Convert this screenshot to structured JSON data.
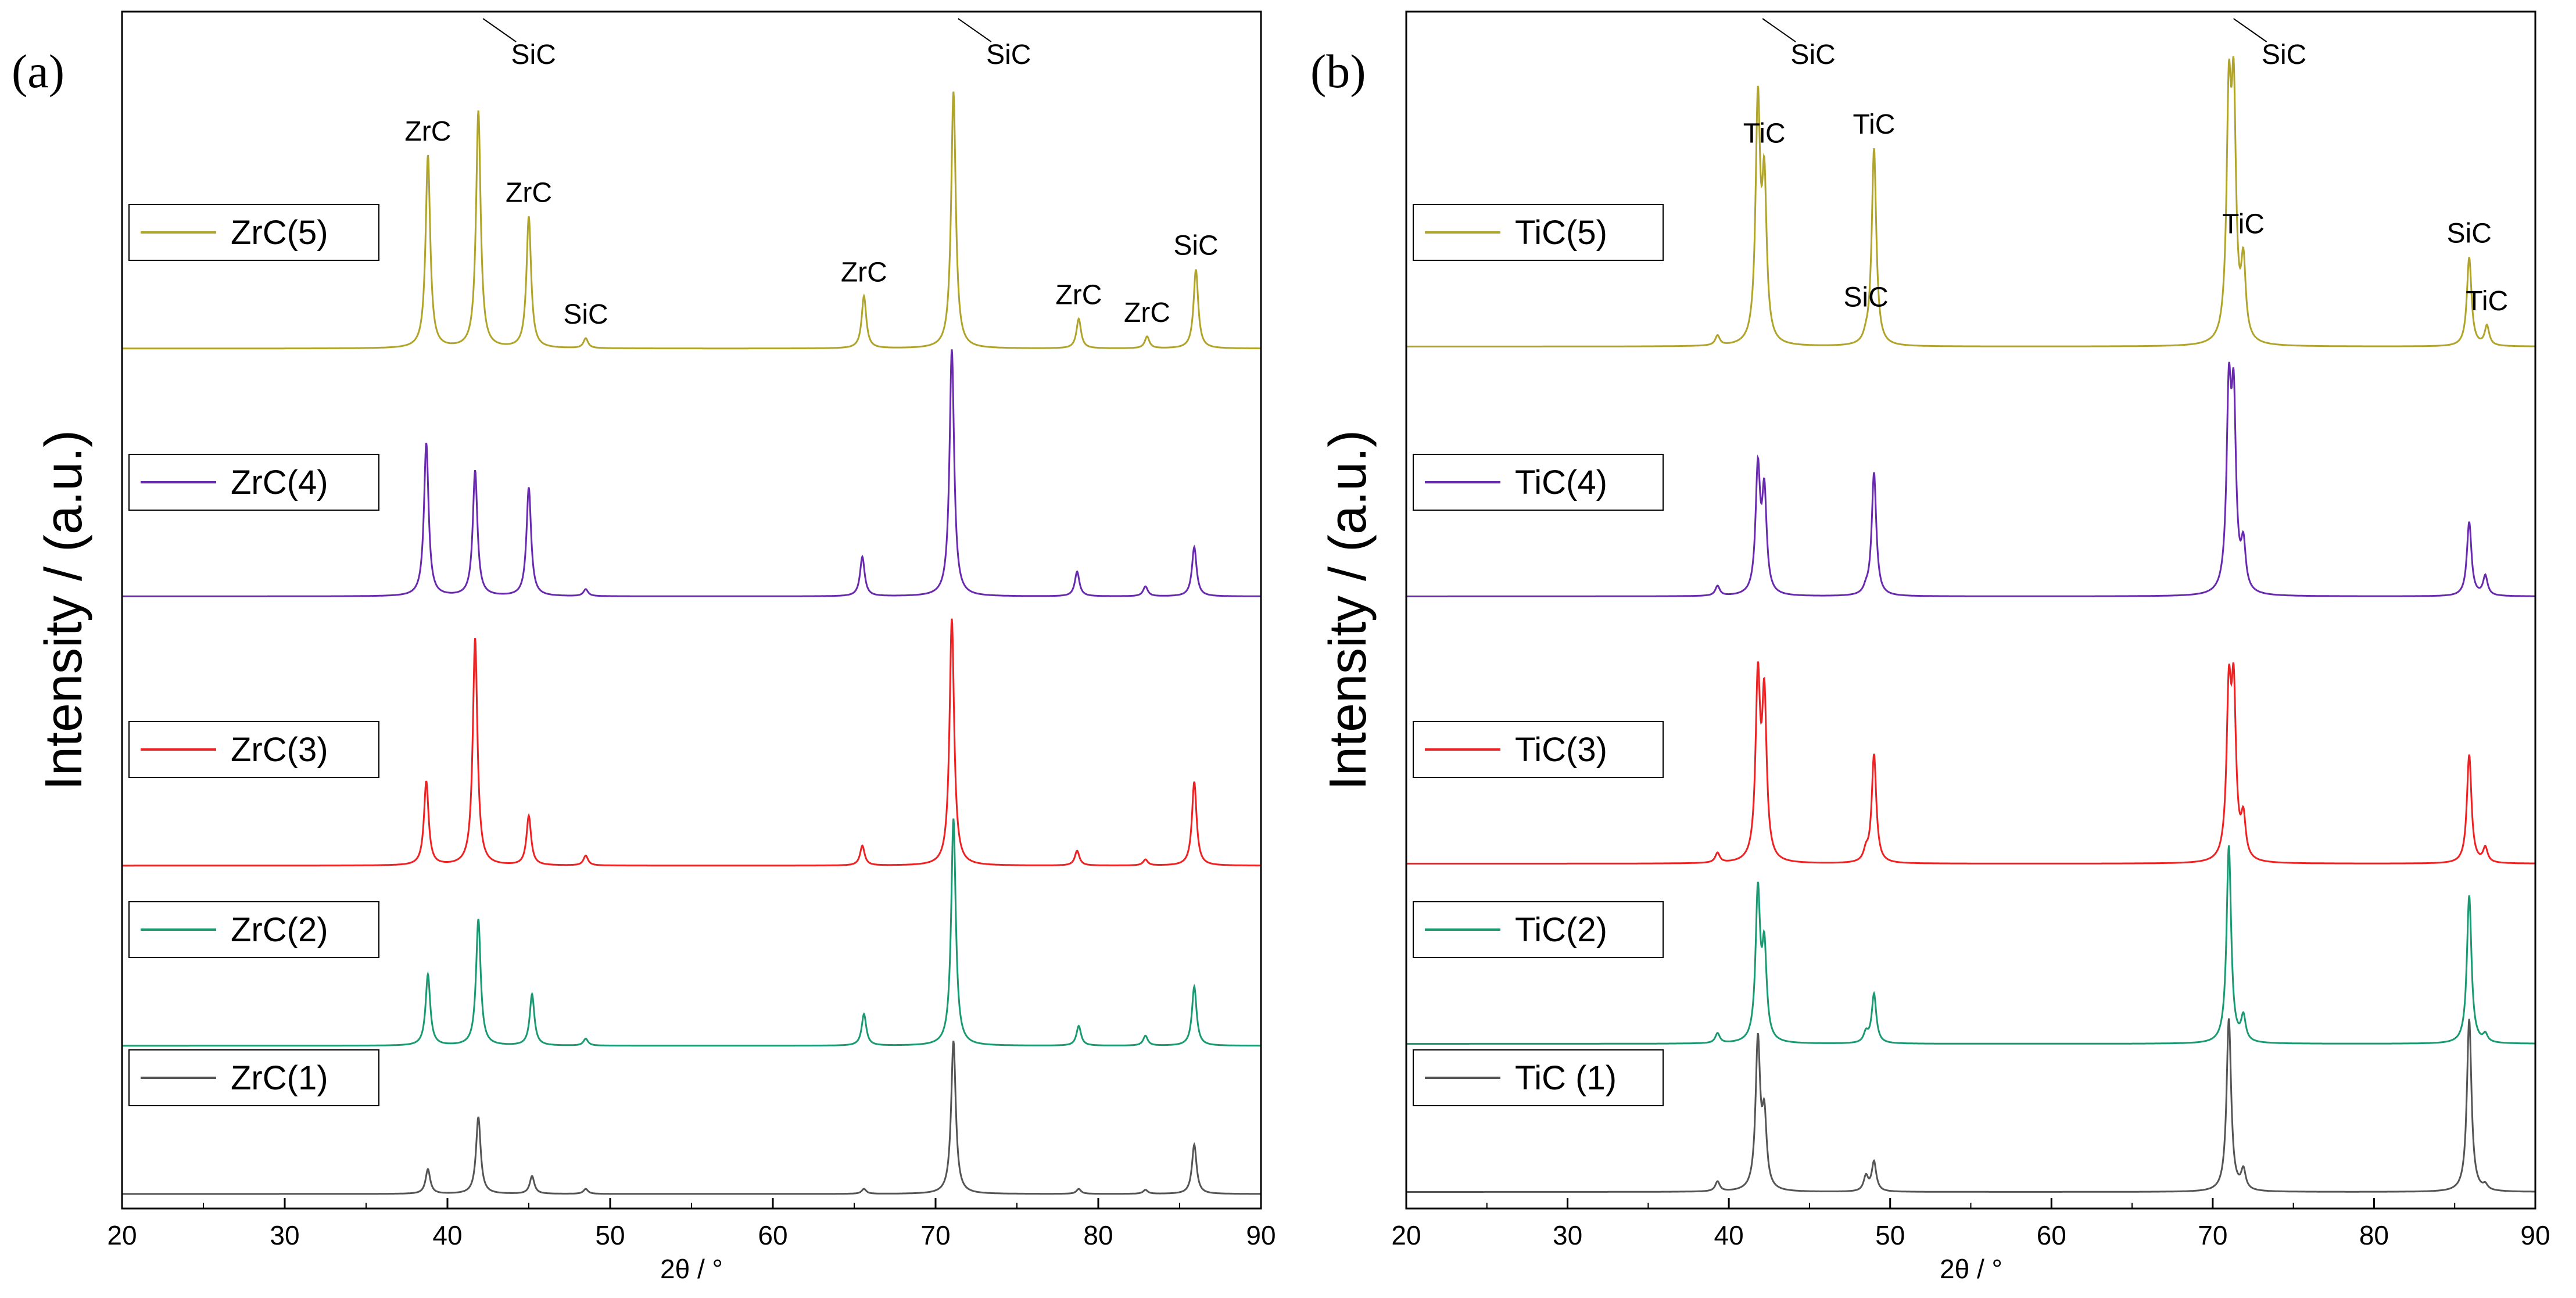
{
  "figure": {
    "xlabel": "2θ / °",
    "ylabel": "Intensity / (a.u.)"
  },
  "chart_data": [
    {
      "type": "line",
      "panel": "(a)",
      "xlabel": "2θ / °",
      "ylabel": "Intensity / (a.u.)",
      "xlim": [
        20,
        90
      ],
      "xticks": [
        20,
        30,
        40,
        50,
        60,
        70,
        80,
        90
      ],
      "yticks": [],
      "grid": false,
      "legend_position": "left (one entry beside each trace)",
      "series": [
        {
          "name": "ZrC(1)",
          "color": "#555555",
          "offset": 0,
          "base": 0.03,
          "peaks": [
            [
              38.8,
              0.25
            ],
            [
              41.9,
              0.78
            ],
            [
              45.2,
              0.18
            ],
            [
              48.5,
              0.05
            ],
            [
              65.6,
              0.05
            ],
            [
              71.1,
              1.55
            ],
            [
              78.8,
              0.05
            ],
            [
              82.9,
              0.04
            ],
            [
              85.9,
              0.5
            ]
          ]
        },
        {
          "name": "ZrC(2)",
          "color": "#1a9a72",
          "offset": 1,
          "base": 0.03,
          "peaks": [
            [
              38.8,
              0.72
            ],
            [
              41.9,
              1.28
            ],
            [
              45.2,
              0.52
            ],
            [
              48.5,
              0.07
            ],
            [
              65.6,
              0.32
            ],
            [
              71.1,
              2.3
            ],
            [
              78.8,
              0.2
            ],
            [
              82.9,
              0.1
            ],
            [
              85.9,
              0.6
            ]
          ]
        },
        {
          "name": "ZrC(3)",
          "color": "#ee2222",
          "offset": 2,
          "base": 0.03,
          "peaks": [
            [
              38.7,
              0.85
            ],
            [
              41.7,
              2.3
            ],
            [
              45.0,
              0.5
            ],
            [
              48.5,
              0.1
            ],
            [
              65.5,
              0.2
            ],
            [
              71.0,
              2.5
            ],
            [
              78.7,
              0.15
            ],
            [
              82.9,
              0.06
            ],
            [
              85.9,
              0.85
            ]
          ]
        },
        {
          "name": "ZrC(4)",
          "color": "#6a2ab0",
          "offset": 3,
          "base": 0.05,
          "peaks": [
            [
              38.7,
              1.55
            ],
            [
              41.7,
              1.27
            ],
            [
              45.0,
              1.1
            ],
            [
              48.5,
              0.07
            ],
            [
              65.5,
              0.4
            ],
            [
              71.0,
              2.5
            ],
            [
              78.7,
              0.25
            ],
            [
              82.9,
              0.1
            ],
            [
              85.9,
              0.5
            ]
          ]
        },
        {
          "name": "ZrC(5)",
          "color": "#b0a42a",
          "offset": 4,
          "base": 0.03,
          "peaks": [
            [
              38.8,
              1.95
            ],
            [
              41.9,
              2.4
            ],
            [
              45.0,
              1.33
            ],
            [
              48.5,
              0.1
            ],
            [
              65.6,
              0.53
            ],
            [
              71.1,
              2.6
            ],
            [
              78.8,
              0.3
            ],
            [
              83.0,
              0.12
            ],
            [
              86.0,
              0.8
            ]
          ]
        }
      ],
      "annotations": [
        {
          "text": "ZrC",
          "x": 38.8,
          "series": 4
        },
        {
          "text": "SiC",
          "x": 41.9,
          "series": 4,
          "arrow": true
        },
        {
          "text": "ZrC",
          "x": 45.0,
          "series": 4
        },
        {
          "text": "SiC",
          "x": 48.5,
          "series": 4
        },
        {
          "text": "ZrC",
          "x": 65.6,
          "series": 4
        },
        {
          "text": "SiC",
          "x": 71.1,
          "series": 4,
          "arrow": true
        },
        {
          "text": "ZrC",
          "x": 78.8,
          "series": 4
        },
        {
          "text": "ZrC",
          "x": 83.0,
          "series": 4
        },
        {
          "text": "SiC",
          "x": 86.0,
          "series": 4
        }
      ]
    },
    {
      "type": "line",
      "panel": "(b)",
      "xlabel": "2θ / °",
      "ylabel": "Intensity / (a.u.)",
      "xlim": [
        20,
        90
      ],
      "xticks": [
        20,
        30,
        40,
        50,
        60,
        70,
        80,
        90
      ],
      "yticks": [],
      "grid": false,
      "legend_position": "left (one entry beside each trace)",
      "series": [
        {
          "name": "TiC (1)",
          "color": "#555555",
          "offset": 0,
          "base": 0.05,
          "peaks": [
            [
              39.3,
              0.1
            ],
            [
              41.8,
              1.5
            ],
            [
              42.2,
              0.7
            ],
            [
              48.5,
              0.15
            ],
            [
              49.0,
              0.3
            ],
            [
              71.0,
              1.75
            ],
            [
              71.9,
              0.2
            ],
            [
              85.9,
              1.75
            ],
            [
              86.9,
              0.05
            ]
          ]
        },
        {
          "name": "TiC(2)",
          "color": "#1a9a72",
          "offset": 1,
          "base": 0.05,
          "peaks": [
            [
              39.3,
              0.1
            ],
            [
              41.8,
              1.5
            ],
            [
              42.2,
              0.9
            ],
            [
              48.5,
              0.1
            ],
            [
              49.0,
              0.5
            ],
            [
              71.0,
              2.0
            ],
            [
              71.9,
              0.25
            ],
            [
              85.9,
              1.5
            ],
            [
              86.9,
              0.08
            ]
          ]
        },
        {
          "name": "TiC(3)",
          "color": "#ee2222",
          "offset": 2,
          "base": 0.05,
          "peaks": [
            [
              39.3,
              0.1
            ],
            [
              41.8,
              1.8
            ],
            [
              42.2,
              1.6
            ],
            [
              48.5,
              0.1
            ],
            [
              49.0,
              1.1
            ],
            [
              71.0,
              1.6
            ],
            [
              71.3,
              1.6
            ],
            [
              71.9,
              0.4
            ],
            [
              85.9,
              1.1
            ],
            [
              86.9,
              0.15
            ]
          ]
        },
        {
          "name": "TiC(4)",
          "color": "#6a2ab0",
          "offset": 3,
          "base": 0.05,
          "peaks": [
            [
              39.3,
              0.1
            ],
            [
              41.8,
              1.25
            ],
            [
              42.2,
              1.0
            ],
            [
              48.5,
              0.05
            ],
            [
              49.0,
              1.25
            ],
            [
              71.0,
              1.9
            ],
            [
              71.3,
              1.8
            ],
            [
              71.9,
              0.45
            ],
            [
              85.9,
              0.75
            ],
            [
              86.9,
              0.2
            ]
          ]
        },
        {
          "name": "TiC(5)",
          "color": "#b0a42a",
          "offset": 4,
          "base": 0.05,
          "peaks": [
            [
              39.3,
              0.1
            ],
            [
              41.8,
              2.4
            ],
            [
              42.2,
              1.55
            ],
            [
              48.5,
              0.05
            ],
            [
              49.0,
              2.0
            ],
            [
              71.0,
              2.3
            ],
            [
              71.3,
              2.3
            ],
            [
              71.9,
              0.75
            ],
            [
              85.9,
              0.9
            ],
            [
              87.0,
              0.2
            ]
          ]
        }
      ],
      "annotations": [
        {
          "text": "SiC",
          "x": 41.8,
          "series": 4,
          "arrow": true
        },
        {
          "text": "TiC",
          "x": 42.2,
          "series": 4
        },
        {
          "text": "SiC",
          "x": 48.5,
          "series": 4
        },
        {
          "text": "TiC",
          "x": 49.0,
          "series": 4
        },
        {
          "text": "SiC",
          "x": 71.0,
          "series": 4,
          "arrow": true
        },
        {
          "text": "TiC",
          "x": 71.9,
          "series": 4
        },
        {
          "text": "SiC",
          "x": 85.9,
          "series": 4
        },
        {
          "text": "TiC",
          "x": 87.0,
          "series": 4
        }
      ]
    }
  ]
}
